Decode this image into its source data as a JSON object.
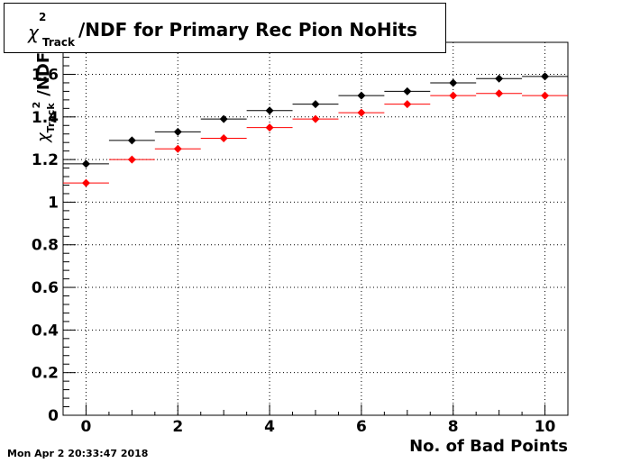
{
  "chart_data": {
    "type": "scatter",
    "title": "χ²Track/NDF for Primary Rec Pion NoHits",
    "title_parts": {
      "chi": "χ",
      "sup": "2",
      "sub": "Track",
      "rest": "/NDF for Primary Rec Pion NoHits"
    },
    "xlabel": "No. of Bad Points",
    "ylabel_parts": {
      "chi": "χ",
      "sup": "2",
      "sub": "Track",
      "rest": "/NDF"
    },
    "xlim": [
      -0.5,
      10.5
    ],
    "ylim": [
      0,
      1.75
    ],
    "grid": true,
    "x_ticks": [
      0,
      2,
      4,
      6,
      8,
      10
    ],
    "x_tick_labels": [
      "0",
      "2",
      "4",
      "6",
      "8",
      "10"
    ],
    "y_ticks": [
      0,
      0.2,
      0.4,
      0.6,
      0.8,
      1,
      1.2,
      1.4,
      1.6
    ],
    "y_tick_labels": [
      "0",
      "0.2",
      "0.4",
      "0.6",
      "0.8",
      "1",
      "1.2",
      "1.4",
      "1.6"
    ],
    "x": [
      0,
      1,
      2,
      3,
      4,
      5,
      6,
      7,
      8,
      9,
      10
    ],
    "series": [
      {
        "color": "#000000",
        "values": [
          1.18,
          1.29,
          1.33,
          1.39,
          1.43,
          1.46,
          1.5,
          1.52,
          1.56,
          1.58,
          1.59
        ]
      },
      {
        "color": "#ff0000",
        "values": [
          1.09,
          1.2,
          1.25,
          1.3,
          1.35,
          1.39,
          1.42,
          1.46,
          1.5,
          1.51,
          1.5
        ]
      }
    ]
  },
  "datestamp": "Mon Apr  2 20:33:47 2018"
}
